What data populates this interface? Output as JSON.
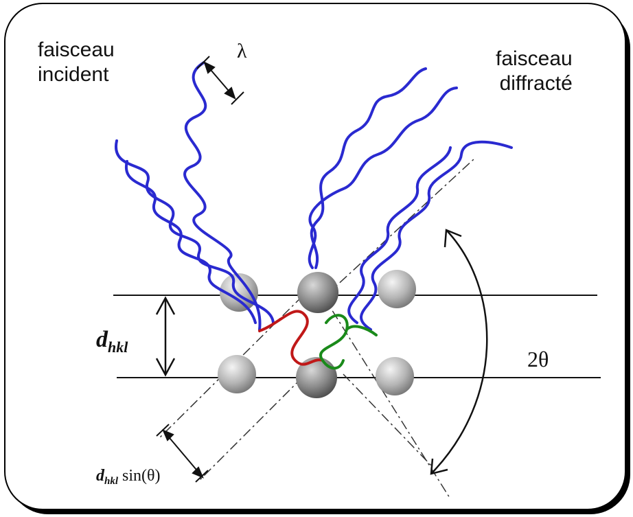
{
  "labels": {
    "incident_line1": "faisceau",
    "incident_line2": "incident",
    "diffracted_line1": "faisceau",
    "diffracted_line2": "diffracté",
    "wavelength": "λ",
    "dhkl_d": "d",
    "dhkl_sub": "hkl",
    "path_d": "d",
    "path_sub": "hkl",
    "path_expr": "sin(θ)",
    "two_theta": "2θ"
  },
  "colors": {
    "wave": "#2a2ad0",
    "path_red": "#c01818",
    "path_green": "#1a8a1a",
    "line": "#111111",
    "atom": "#aaaaaa"
  }
}
